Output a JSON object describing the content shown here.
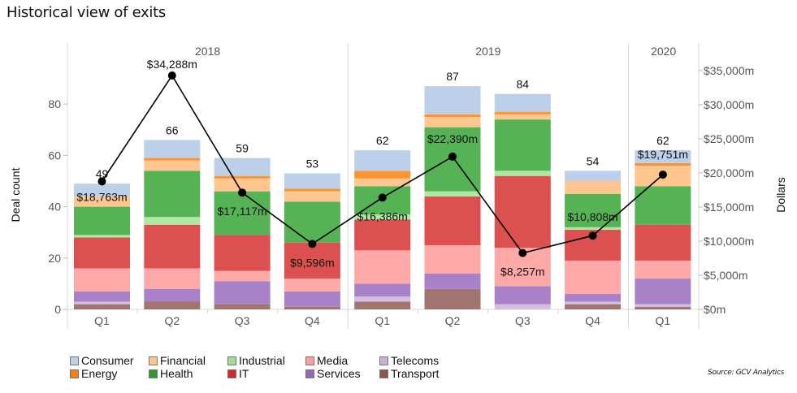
{
  "title": "Historical view of exits",
  "source": "Source: GCV Analytics",
  "chart_data": {
    "type": "bar",
    "subtype": "stacked-bar-with-line",
    "title": "Historical view of exits",
    "ylabel": "Deal count",
    "y2label": "Dollars",
    "ylim": [
      0,
      90
    ],
    "y2lim": [
      0,
      35000
    ],
    "yticks": [
      "0",
      "20",
      "40",
      "60",
      "80"
    ],
    "ytick_values": [
      0,
      20,
      40,
      60,
      80
    ],
    "y2ticks": [
      "$0m",
      "$5,000m",
      "$10,000m",
      "$15,000m",
      "$20,000m",
      "$25,000m",
      "$30,000m",
      "$35,000m"
    ],
    "y2tick_values": [
      0,
      5000,
      10000,
      15000,
      20000,
      25000,
      30000,
      35000
    ],
    "years": [
      {
        "label": "2018",
        "quarters": 4
      },
      {
        "label": "2019",
        "quarters": 4
      },
      {
        "label": "2020",
        "quarters": 1
      }
    ],
    "categories": [
      "Q1",
      "Q2",
      "Q3",
      "Q4",
      "Q1",
      "Q2",
      "Q3",
      "Q4",
      "Q1"
    ],
    "totals": [
      49,
      66,
      59,
      53,
      62,
      87,
      84,
      54,
      62
    ],
    "series": [
      {
        "name": "Transport",
        "color": "#a07570",
        "values": [
          2,
          3,
          2,
          1,
          3,
          8,
          0,
          2,
          1
        ]
      },
      {
        "name": "Telecoms",
        "color": "#d3bde0",
        "values": [
          1,
          0,
          0,
          0,
          2,
          0,
          2,
          1,
          1
        ]
      },
      {
        "name": "Services",
        "color": "#a981c8",
        "values": [
          4,
          5,
          9,
          6,
          5,
          6,
          7,
          3,
          10
        ]
      },
      {
        "name": "Media",
        "color": "#ffa8a8",
        "values": [
          9,
          8,
          4,
          5,
          13,
          11,
          15,
          13,
          7
        ]
      },
      {
        "name": "IT",
        "color": "#dc5050",
        "values": [
          12,
          17,
          14,
          14,
          12,
          19,
          28,
          12,
          14
        ]
      },
      {
        "name": "Industrial",
        "color": "#ade8a4",
        "values": [
          1,
          3,
          0,
          0,
          2,
          2,
          2,
          1,
          0
        ]
      },
      {
        "name": "Health",
        "color": "#55b355",
        "values": [
          11,
          18,
          17,
          16,
          11,
          25,
          20,
          13,
          15
        ]
      },
      {
        "name": "Financial",
        "color": "#ffc690",
        "values": [
          4,
          4,
          5,
          4,
          3,
          4,
          2,
          5,
          8
        ]
      },
      {
        "name": "Energy",
        "color": "#fb9433",
        "values": [
          0,
          1,
          1,
          1,
          3,
          1,
          1,
          0,
          1
        ]
      },
      {
        "name": "Consumer",
        "color": "#bdd0ea",
        "values": [
          5,
          7,
          7,
          6,
          8,
          11,
          7,
          4,
          5
        ]
      }
    ],
    "line": {
      "name": "Dollars",
      "values": [
        18763,
        34288,
        17117,
        9596,
        16386,
        22390,
        8257,
        10808,
        19751
      ],
      "labels": [
        "$18,763m",
        "$34,288m",
        "$17,117m",
        "$9,596m",
        "$16,386m",
        "$22,390m",
        "$8,257m",
        "$10,808m",
        "$19,751m"
      ]
    },
    "legend": {
      "placement": "bottom-left",
      "items": [
        {
          "name": "Consumer",
          "color": "#bdd0ea"
        },
        {
          "name": "Financial",
          "color": "#ffc690"
        },
        {
          "name": "Industrial",
          "color": "#a3dd98"
        },
        {
          "name": "Media",
          "color": "#ff9e9e"
        },
        {
          "name": "Telecoms",
          "color": "#c8b1d8"
        },
        {
          "name": "Energy",
          "color": "#f57f17"
        },
        {
          "name": "Health",
          "color": "#2e9a2e"
        },
        {
          "name": "IT",
          "color": "#d62728"
        },
        {
          "name": "Services",
          "color": "#9467bd"
        },
        {
          "name": "Transport",
          "color": "#8c564b"
        }
      ]
    },
    "grid": false
  }
}
